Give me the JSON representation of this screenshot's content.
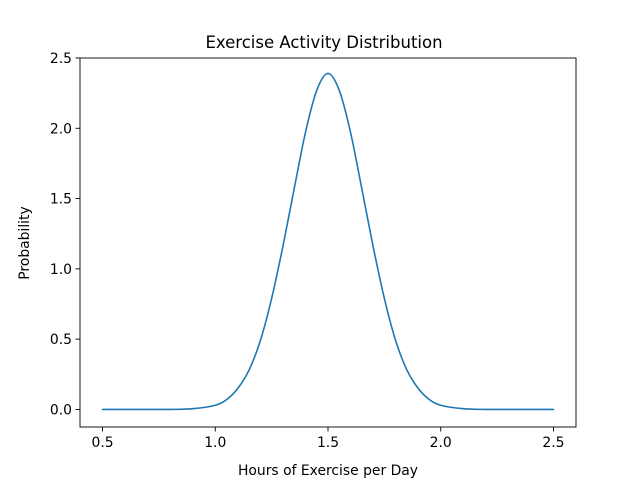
{
  "chart_data": {
    "type": "line",
    "title": "Exercise Activity Distribution",
    "xlabel": "Hours of Exercise per Day",
    "ylabel": "Probability",
    "xlim": [
      0.4,
      2.6
    ],
    "ylim": [
      -0.125,
      2.5
    ],
    "xticks": [
      0.5,
      1.0,
      1.5,
      2.0,
      2.5
    ],
    "xtick_labels": [
      "0.5",
      "1.0",
      "1.5",
      "2.0",
      "2.5"
    ],
    "yticks": [
      0.0,
      0.5,
      1.0,
      1.5,
      2.0,
      2.5
    ],
    "ytick_labels": [
      "0.0",
      "0.5",
      "1.0",
      "1.5",
      "2.0",
      "2.5"
    ],
    "grid": false,
    "series": [
      {
        "color": "#1f77b4",
        "x": [
          0.5,
          0.6,
          0.7,
          0.8,
          0.9,
          1.0,
          1.05,
          1.1,
          1.15,
          1.2,
          1.25,
          1.3,
          1.35,
          1.4,
          1.45,
          1.5,
          1.55,
          1.6,
          1.65,
          1.7,
          1.75,
          1.8,
          1.85,
          1.9,
          1.95,
          2.0,
          2.1,
          2.2,
          2.3,
          2.4,
          2.5
        ],
        "y": [
          0.0,
          0.0,
          0.0,
          0.0,
          0.005,
          0.03,
          0.07,
          0.15,
          0.28,
          0.49,
          0.79,
          1.16,
          1.57,
          1.97,
          2.27,
          2.39,
          2.27,
          1.97,
          1.57,
          1.16,
          0.79,
          0.49,
          0.28,
          0.15,
          0.07,
          0.03,
          0.005,
          0.0,
          0.0,
          0.0,
          0.0
        ]
      }
    ]
  }
}
